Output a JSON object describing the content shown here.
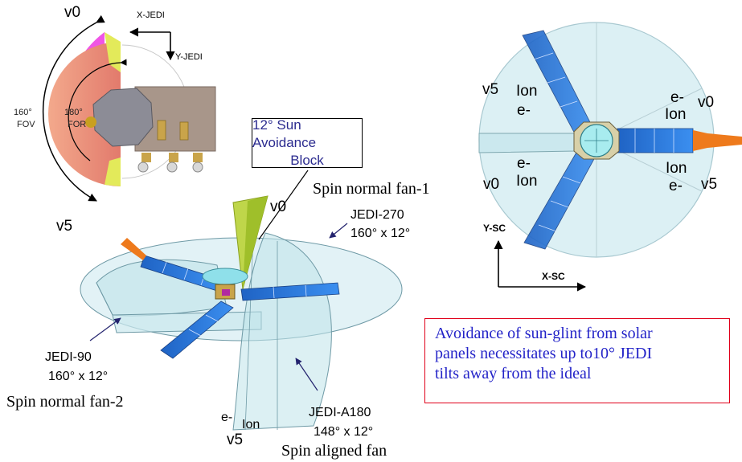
{
  "colors": {
    "fov_magenta": "#f055e6",
    "for_salmon": "#e8947a",
    "sun_block_yellow": "#dfe64f",
    "fan_fill": "#bfe3ea",
    "fan_stroke": "#6f9aa6",
    "solar_panel_blue": "#2e7fe0",
    "magnetometer_orange": "#ee7a1c",
    "note_border": "#e0001a",
    "note_text": "#2323c8"
  },
  "top_left": {
    "v0": "v0",
    "v5": "v5",
    "x_jedi": "X-JEDI",
    "y_jedi": "Y-JEDI",
    "fov_value": "160°",
    "fov_label": "FOV",
    "for_value": "180°",
    "for_label": "FOR"
  },
  "sun_block": {
    "line1": "12° Sun Avoidance",
    "line2": "Block"
  },
  "center": {
    "v0": "v0",
    "spin_normal_fan_1": "Spin normal fan-1",
    "jedi_270": "JEDI-270",
    "jedi_270_fov": "160° x 12°",
    "jedi_90": "JEDI-90",
    "jedi_90_fov": "160° x 12°",
    "spin_normal_fan_2": "Spin normal fan-2",
    "jedi_a180": "JEDI-A180",
    "jedi_a180_fov": "148° x 12°",
    "spin_aligned_fan": "Spin aligned fan",
    "e_minus": "e-",
    "ion": "Ion",
    "v5": "v5"
  },
  "top_right": {
    "v5": "v5",
    "ion_upper_left": "Ion",
    "e_upper_left": "e-",
    "e_upper_right": "e-",
    "ion_upper_right": "Ion",
    "v0_right": "v0",
    "e_lower_left": "e-",
    "ion_lower_left": "Ion",
    "v0_left": "v0",
    "ion_lower_right": "Ion",
    "e_lower_right": "e-",
    "v5_right": "v5",
    "y_sc": "Y-SC",
    "x_sc": "X-SC"
  },
  "note": {
    "line1": "Avoidance of sun-glint from solar",
    "line2": "panels necessitates up to10° JEDI",
    "line3": "tilts away from the ideal"
  }
}
